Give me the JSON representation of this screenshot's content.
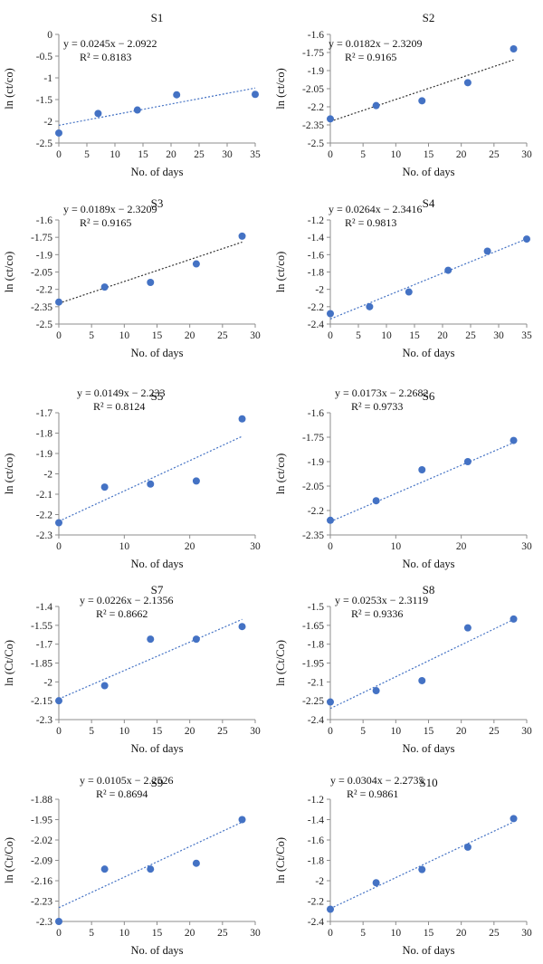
{
  "chart_data": [
    {
      "type": "scatter",
      "title": "S1",
      "xlabel": "No. of days",
      "ylabel": "ln (ct/co)",
      "xlim": [
        0,
        35
      ],
      "xticks": [
        0,
        5,
        10,
        15,
        20,
        25,
        30,
        35
      ],
      "ylim": [
        -2.5,
        0
      ],
      "yticks": [
        0,
        -0.5,
        -1,
        -1.5,
        -2,
        -2.5
      ],
      "ytick_labels": [
        "0",
        "-0.5",
        "-1",
        "-1.5",
        "-2",
        "-2.5"
      ],
      "x": [
        0,
        7,
        14,
        21,
        35
      ],
      "y": [
        -2.27,
        -1.82,
        -1.74,
        -1.39,
        -1.38
      ],
      "equation": "y = 0.0245x − 2.0922",
      "r2": "R² = 0.8183",
      "trendline": {
        "slope": 0.0245,
        "intercept": -2.0922,
        "x_range": [
          0,
          35
        ],
        "color": "#4472c4"
      }
    },
    {
      "type": "scatter",
      "title": "S2",
      "xlabel": "No. of days",
      "ylabel": "ln (ct/co)",
      "xlim": [
        0,
        30
      ],
      "xticks": [
        0,
        5,
        10,
        15,
        20,
        25,
        30
      ],
      "ylim": [
        -2.5,
        -1.6
      ],
      "yticks": [
        -1.6,
        -1.75,
        -1.9,
        -2.05,
        -2.2,
        -2.35,
        -2.5
      ],
      "ytick_labels": [
        "-1.6",
        "-1.75",
        "-1.9",
        "-2.05",
        "-2.2",
        "-2.35",
        "-2.5"
      ],
      "x": [
        0,
        7,
        14,
        21,
        28
      ],
      "y": [
        -2.3,
        -2.19,
        -2.15,
        -2.0,
        -1.72
      ],
      "equation": "y = 0.0182x − 2.3209",
      "r2": "R² = 0.9165",
      "trendline": {
        "slope": 0.0182,
        "intercept": -2.3209,
        "x_range": [
          0,
          28
        ],
        "color": "#333333"
      }
    },
    {
      "type": "scatter",
      "title": "S3",
      "xlabel": "No. of days",
      "ylabel": "ln (ct/co)",
      "xlim": [
        0,
        30
      ],
      "xticks": [
        0,
        5,
        10,
        15,
        20,
        25,
        30
      ],
      "ylim": [
        -2.5,
        -1.6
      ],
      "yticks": [
        -1.6,
        -1.75,
        -1.9,
        -2.05,
        -2.2,
        -2.35,
        -2.5
      ],
      "ytick_labels": [
        "-1.6",
        "-1.75",
        "-1.9",
        "-2.05",
        "-2.2",
        "-2.35",
        "-2.5"
      ],
      "x": [
        0,
        7,
        14,
        21,
        28
      ],
      "y": [
        -2.31,
        -2.18,
        -2.14,
        -1.98,
        -1.74
      ],
      "equation": "y = 0.0189x − 2.3209",
      "r2": "R² = 0.9165",
      "trendline": {
        "slope": 0.0189,
        "intercept": -2.3209,
        "x_range": [
          0,
          28
        ],
        "color": "#333333"
      }
    },
    {
      "type": "scatter",
      "title": "S4",
      "xlabel": "No. of days",
      "ylabel": "ln (ct/co)",
      "xlim": [
        0,
        35
      ],
      "xticks": [
        0,
        5,
        10,
        15,
        20,
        25,
        30,
        35
      ],
      "ylim": [
        -2.4,
        -1.2
      ],
      "yticks": [
        -1.2,
        -1.4,
        -1.6,
        -1.8,
        -2,
        -2.2,
        -2.4
      ],
      "ytick_labels": [
        "-1.2",
        "-1.4",
        "-1.6",
        "-1.8",
        "-2",
        "-2.2",
        "-2.4"
      ],
      "x": [
        0,
        7,
        14,
        21,
        28,
        35
      ],
      "y": [
        -2.28,
        -2.2,
        -2.03,
        -1.78,
        -1.56,
        -1.42
      ],
      "equation": "y = 0.0264x − 2.3416",
      "r2": "R² = 0.9813",
      "trendline": {
        "slope": 0.0264,
        "intercept": -2.3416,
        "x_range": [
          0,
          35
        ],
        "color": "#4472c4"
      }
    },
    {
      "type": "scatter",
      "title": "S5",
      "xlabel": "No. of days",
      "ylabel": "ln (ct/co)",
      "xlim": [
        0,
        30
      ],
      "xticks": [
        0,
        10,
        20,
        30
      ],
      "ylim": [
        -2.3,
        -1.7
      ],
      "yticks": [
        -1.7,
        -1.8,
        -1.9,
        -2,
        -2.1,
        -2.2,
        -2.3
      ],
      "ytick_labels": [
        "-1.7",
        "-1.8",
        "-1.9",
        "-2",
        "-2.1",
        "-2.2",
        "-2.3"
      ],
      "x": [
        0,
        7,
        14,
        21,
        28
      ],
      "y": [
        -2.24,
        -2.065,
        -2.05,
        -2.035,
        -1.73
      ],
      "equation": "y = 0.0149x − 2.233",
      "r2": "R² = 0.8124",
      "trendline": {
        "slope": 0.0149,
        "intercept": -2.233,
        "x_range": [
          0,
          28
        ],
        "color": "#4472c4"
      }
    },
    {
      "type": "scatter",
      "title": "S6",
      "xlabel": "No. of days",
      "ylabel": "ln (ct/co)",
      "xlim": [
        0,
        30
      ],
      "xticks": [
        0,
        10,
        20,
        30
      ],
      "ylim": [
        -2.35,
        -1.6
      ],
      "yticks": [
        -1.6,
        -1.75,
        -1.9,
        -2.05,
        -2.2,
        -2.35
      ],
      "ytick_labels": [
        "-1.6",
        "-1.75",
        "-1.9",
        "-2.05",
        "-2.2",
        "-2.35"
      ],
      "x": [
        0,
        7,
        14,
        21,
        28
      ],
      "y": [
        -2.26,
        -2.14,
        -1.95,
        -1.9,
        -1.77
      ],
      "equation": "y = 0.0173x − 2.2682",
      "r2": "R² = 0.9733",
      "trendline": {
        "slope": 0.0173,
        "intercept": -2.2682,
        "x_range": [
          0,
          28
        ],
        "color": "#4472c4"
      }
    },
    {
      "type": "scatter",
      "title": "S7",
      "xlabel": "No. of days",
      "ylabel": "ln (Ct/Co)",
      "xlim": [
        0,
        30
      ],
      "xticks": [
        0,
        5,
        10,
        15,
        20,
        25,
        30
      ],
      "ylim": [
        -2.3,
        -1.4
      ],
      "yticks": [
        -1.4,
        -1.55,
        -1.7,
        -1.85,
        -2,
        -2.15,
        -2.3
      ],
      "ytick_labels": [
        "-1.4",
        "-1.55",
        "-1.7",
        "-1.85",
        "-2",
        "-2.15",
        "-2.3"
      ],
      "x": [
        0,
        7,
        14,
        21,
        28
      ],
      "y": [
        -2.15,
        -2.03,
        -1.66,
        -1.66,
        -1.56
      ],
      "equation": "y = 0.0226x − 2.1356",
      "r2": "R² = 0.8662",
      "trendline": {
        "slope": 0.0226,
        "intercept": -2.1356,
        "x_range": [
          0,
          28
        ],
        "color": "#4472c4"
      }
    },
    {
      "type": "scatter",
      "title": "S8",
      "xlabel": "No. of days",
      "ylabel": "ln (Ct/Co)",
      "xlim": [
        0,
        30
      ],
      "xticks": [
        0,
        5,
        10,
        15,
        20,
        25,
        30
      ],
      "ylim": [
        -2.4,
        -1.5
      ],
      "yticks": [
        -1.5,
        -1.65,
        -1.8,
        -1.95,
        -2.1,
        -2.25,
        -2.4
      ],
      "ytick_labels": [
        "-1.5",
        "-1.65",
        "-1.8",
        "-1.95",
        "-2.1",
        "-2.25",
        "-2.4"
      ],
      "x": [
        0,
        7,
        14,
        21,
        28
      ],
      "y": [
        -2.26,
        -2.17,
        -2.09,
        -1.67,
        -1.6
      ],
      "equation": "y = 0.0253x − 2.3119",
      "r2": "R² = 0.9336",
      "trendline": {
        "slope": 0.0253,
        "intercept": -2.3119,
        "x_range": [
          0,
          28
        ],
        "color": "#4472c4"
      }
    },
    {
      "type": "scatter",
      "title": "S9",
      "xlabel": "No. of days",
      "ylabel": "ln (Ct/Co)",
      "xlim": [
        0,
        30
      ],
      "xticks": [
        0,
        5,
        10,
        15,
        20,
        25,
        30
      ],
      "ylim": [
        -2.3,
        -1.88
      ],
      "yticks": [
        -1.88,
        -1.95,
        -2.02,
        -2.09,
        -2.16,
        -2.23,
        -2.3
      ],
      "ytick_labels": [
        "-1.88",
        "-1.95",
        "-2.02",
        "-2.09",
        "-2.16",
        "-2.23",
        "-2.3"
      ],
      "x": [
        0,
        7,
        14,
        21,
        28
      ],
      "y": [
        -2.3,
        -2.12,
        -2.12,
        -2.1,
        -1.95
      ],
      "equation": "y = 0.0105x − 2.2526",
      "r2": "R² = 0.8694",
      "trendline": {
        "slope": 0.0105,
        "intercept": -2.2526,
        "x_range": [
          0,
          28
        ],
        "color": "#4472c4"
      }
    },
    {
      "type": "scatter",
      "title": "S10",
      "xlabel": "No. of days",
      "ylabel": "ln (Ct/Co)",
      "xlim": [
        0,
        30
      ],
      "xticks": [
        0,
        5,
        10,
        15,
        20,
        25,
        30
      ],
      "ylim": [
        -2.4,
        -1.2
      ],
      "yticks": [
        -1.2,
        -1.4,
        -1.6,
        -1.8,
        -2,
        -2.2,
        -2.4
      ],
      "ytick_labels": [
        "-1.2",
        "-1.4",
        "-1.6",
        "-1.8",
        "-2",
        "-2.2",
        "-2.4"
      ],
      "x": [
        0,
        7,
        14,
        21,
        28
      ],
      "y": [
        -2.28,
        -2.02,
        -1.89,
        -1.67,
        -1.39
      ],
      "equation": "y = 0.0304x − 2.2735",
      "r2": "R² = 0.9861",
      "trendline": {
        "slope": 0.0304,
        "intercept": -2.2735,
        "x_range": [
          0,
          28
        ],
        "color": "#4472c4"
      }
    }
  ],
  "style": {
    "point_color": "#4472c4",
    "axis_color": "#8c8c8c",
    "text_color": "#111111"
  }
}
